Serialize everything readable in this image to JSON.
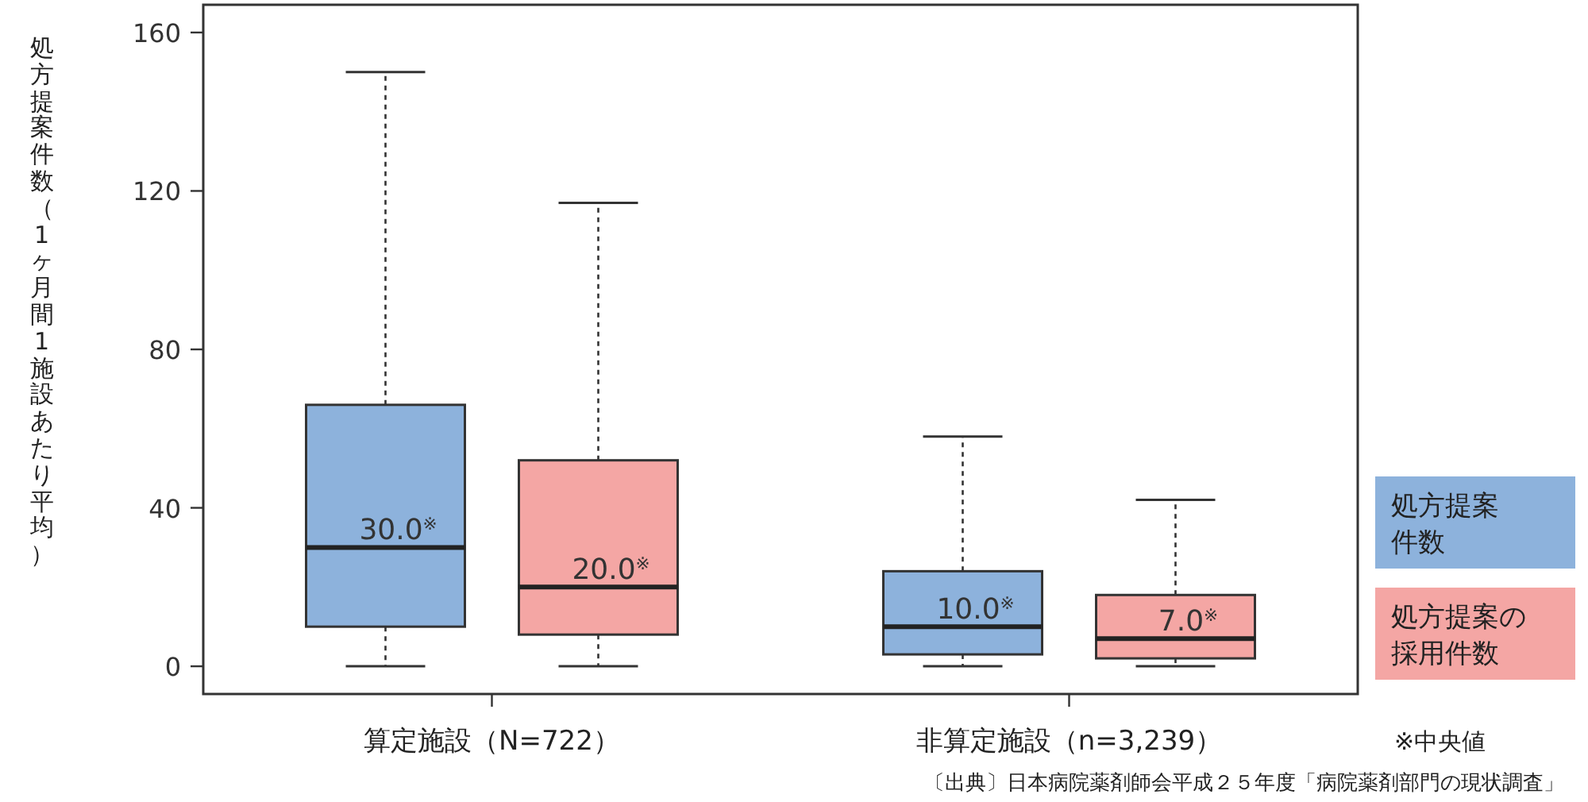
{
  "chart_data": {
    "type": "box",
    "categories": [
      "算定施設（N=722）",
      "非算定施設（n=3,239）"
    ],
    "ylabel": "処方提案件数（1ヶ月間1施設あたり平均）",
    "ylim": [
      -7,
      167
    ],
    "yticks": [
      0,
      40,
      80,
      120,
      160
    ],
    "legend": "right",
    "grid": false,
    "series": [
      {
        "name": "処方提案件数",
        "color": "#8db2dc",
        "boxes": [
          {
            "low": 0,
            "q1": 10,
            "median": 30,
            "q3": 66,
            "high": 150
          },
          {
            "low": 0,
            "q1": 3,
            "median": 10,
            "q3": 24,
            "high": 58
          }
        ],
        "value_labels": [
          "30.0$^{※}$",
          "10.0$^{※}$"
        ]
      },
      {
        "name": "処方提案の採用件数",
        "color": "#f4a6a4",
        "boxes": [
          {
            "low": 0,
            "q1": 8,
            "median": 20,
            "q3": 52,
            "high": 117
          },
          {
            "low": 0,
            "q1": 2,
            "median": 7,
            "q3": 18,
            "high": 42
          }
        ],
        "value_labels": [
          "20.0$^{※}$",
          "7.0$^{※}$"
        ]
      }
    ],
    "annotations": [
      "※中央値",
      "〔出典〕日本病院薬剤師会平成２５年度「病院薬剤部門の現状調査」"
    ]
  }
}
